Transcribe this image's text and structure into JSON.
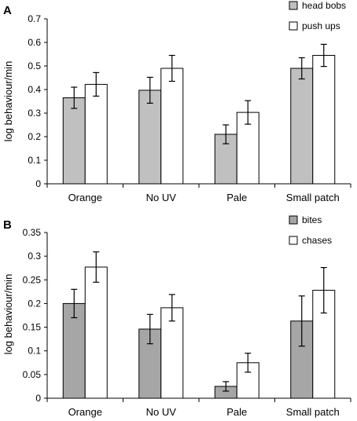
{
  "chart_data": [
    {
      "type": "bar",
      "panel_label": "A",
      "ylabel": "log behaviour/min",
      "categories": [
        "Orange",
        "No UV",
        "Pale",
        "Small patch"
      ],
      "ylim": [
        0,
        0.7
      ],
      "yticks": [
        0,
        0.1,
        0.2,
        0.3,
        0.4,
        0.5,
        0.6,
        0.7
      ],
      "ytick_labels": [
        "0",
        "0.1",
        "0.2",
        "0.3",
        "0.4",
        "0.5",
        "0.6",
        "0.7"
      ],
      "legend_position": "top-right",
      "series": [
        {
          "name": "head bobs",
          "color": "#c0c0c0",
          "values": [
            0.365,
            0.397,
            0.21,
            0.49
          ],
          "errors": [
            0.045,
            0.055,
            0.04,
            0.045
          ]
        },
        {
          "name": "push ups",
          "color": "#ffffff",
          "values": [
            0.422,
            0.49,
            0.303,
            0.545
          ],
          "errors": [
            0.05,
            0.055,
            0.05,
            0.047
          ]
        }
      ]
    },
    {
      "type": "bar",
      "panel_label": "B",
      "ylabel": "log behaviour/min",
      "categories": [
        "Orange",
        "No UV",
        "Pale",
        "Small patch"
      ],
      "ylim": [
        0,
        0.35
      ],
      "yticks": [
        0,
        0.05,
        0.1,
        0.15,
        0.2,
        0.25,
        0.3,
        0.35
      ],
      "ytick_labels": [
        "0",
        "0.05",
        "0.1",
        "0.15",
        "0.2",
        "0.25",
        "0.3",
        "0.35"
      ],
      "legend_position": "top-right",
      "series": [
        {
          "name": "bites",
          "color": "#a6a6a6",
          "values": [
            0.2,
            0.146,
            0.025,
            0.163
          ],
          "errors": [
            0.03,
            0.031,
            0.01,
            0.053
          ]
        },
        {
          "name": "chases",
          "color": "#ffffff",
          "values": [
            0.277,
            0.191,
            0.075,
            0.228
          ],
          "errors": [
            0.032,
            0.028,
            0.02,
            0.048
          ]
        }
      ]
    }
  ]
}
